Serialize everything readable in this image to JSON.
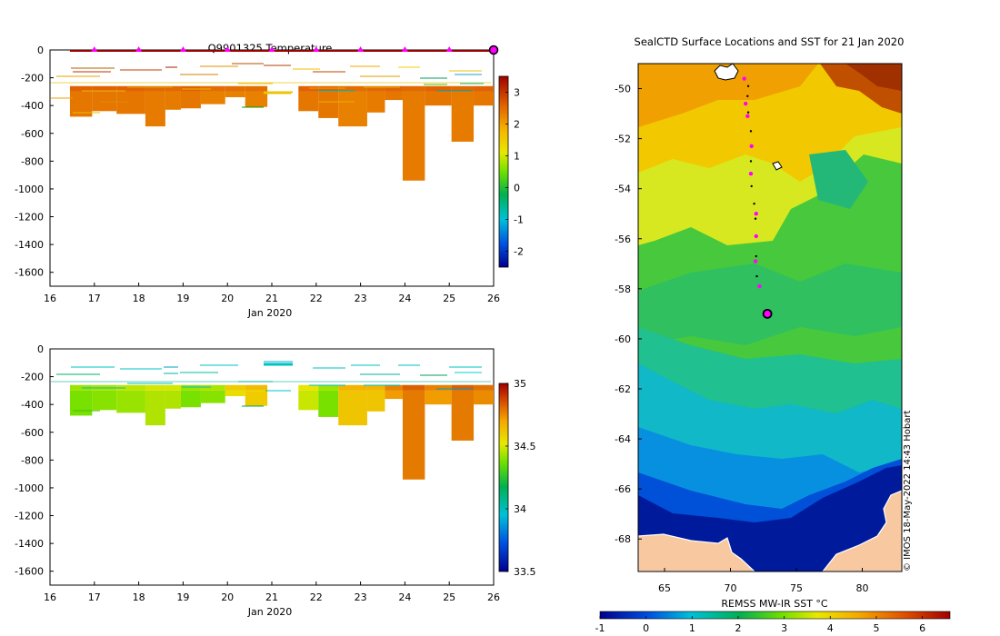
{
  "left_title": "Q9901325  Temperature",
  "right_title": "SealCTD Surface Locations and SST for 21 Jan 2020",
  "credit": "© IMOS 18-May-2022 14:43 Hobart",
  "colors": {
    "land": "#f8c9a0",
    "track_magenta": "#ff00ff",
    "track_black": "#000000"
  },
  "chart_data": [
    {
      "type": "heatmap",
      "title": "Q9901325  Temperature",
      "xlabel": "Jan 2020",
      "ylabel": "",
      "x_ticks": [
        "16",
        "17",
        "18",
        "19",
        "20",
        "21",
        "22",
        "23",
        "24",
        "25",
        "26"
      ],
      "xlim": [
        16,
        26
      ],
      "y_ticks": [
        "0",
        "-200",
        "-400",
        "-600",
        "-800",
        "-1000",
        "-1200",
        "-1400",
        "-1600"
      ],
      "ylim": [
        -1700,
        0
      ],
      "colorbar": {
        "ticks": [
          "3",
          "2",
          "1",
          "0",
          "-1",
          "-2"
        ],
        "range": [
          -2.5,
          3.5
        ]
      },
      "surface_markers": [
        17,
        18,
        19,
        20,
        21,
        22,
        23,
        24,
        25
      ],
      "current_marker": 26,
      "profiles": [
        {
          "start": 16.45,
          "end": 16.95,
          "depth": -480,
          "value": 2.4
        },
        {
          "start": 16.95,
          "end": 17.5,
          "depth": -440,
          "value": 2.4
        },
        {
          "start": 17.5,
          "end": 18.15,
          "depth": -460,
          "value": 2.4
        },
        {
          "start": 18.15,
          "end": 18.6,
          "depth": -550,
          "value": 2.35
        },
        {
          "start": 18.6,
          "end": 18.95,
          "depth": -430,
          "value": 2.35
        },
        {
          "start": 18.95,
          "end": 19.4,
          "depth": -420,
          "value": 2.4
        },
        {
          "start": 19.4,
          "end": 19.95,
          "depth": -390,
          "value": 2.3
        },
        {
          "start": 19.95,
          "end": 20.4,
          "depth": -340,
          "value": 2.3
        },
        {
          "start": 20.4,
          "end": 20.9,
          "depth": -410,
          "value": 2.3
        },
        {
          "start": 21.6,
          "end": 22.05,
          "depth": -440,
          "value": 2.4
        },
        {
          "start": 22.05,
          "end": 22.5,
          "depth": -490,
          "value": 2.4
        },
        {
          "start": 22.5,
          "end": 23.15,
          "depth": -550,
          "value": 2.3
        },
        {
          "start": 23.15,
          "end": 23.55,
          "depth": -450,
          "value": 2.35
        },
        {
          "start": 23.55,
          "end": 23.95,
          "depth": -360,
          "value": 2.4
        },
        {
          "start": 23.95,
          "end": 24.45,
          "depth": -940,
          "value": 2.35
        },
        {
          "start": 24.45,
          "end": 25.05,
          "depth": -400,
          "value": 2.4
        },
        {
          "start": 25.05,
          "end": 25.55,
          "depth": -660,
          "value": 2.35
        },
        {
          "start": 25.55,
          "end": 26.0,
          "depth": -400,
          "value": 2.4
        }
      ]
    },
    {
      "type": "heatmap",
      "title": "",
      "xlabel": "Jan 2020",
      "ylabel": "",
      "x_ticks": [
        "16",
        "17",
        "18",
        "19",
        "20",
        "21",
        "22",
        "23",
        "24",
        "25",
        "26"
      ],
      "xlim": [
        16,
        26
      ],
      "y_ticks": [
        "0",
        "-200",
        "-400",
        "-600",
        "-800",
        "-1000",
        "-1200",
        "-1400",
        "-1600"
      ],
      "ylim": [
        -1700,
        0
      ],
      "colorbar": {
        "ticks": [
          "35",
          "34.5",
          "34",
          "33.5"
        ],
        "range": [
          33.5,
          35
        ]
      },
      "profiles": [
        {
          "start": 16.45,
          "end": 16.95,
          "depth": -480,
          "value": 34.38
        },
        {
          "start": 16.95,
          "end": 17.5,
          "depth": -440,
          "value": 34.4
        },
        {
          "start": 17.5,
          "end": 18.15,
          "depth": -460,
          "value": 34.42
        },
        {
          "start": 18.15,
          "end": 18.6,
          "depth": -550,
          "value": 34.45
        },
        {
          "start": 18.6,
          "end": 18.95,
          "depth": -430,
          "value": 34.45
        },
        {
          "start": 18.95,
          "end": 19.4,
          "depth": -420,
          "value": 34.38
        },
        {
          "start": 19.4,
          "end": 19.95,
          "depth": -390,
          "value": 34.4
        },
        {
          "start": 19.95,
          "end": 20.4,
          "depth": -340,
          "value": 34.55
        },
        {
          "start": 20.4,
          "end": 20.9,
          "depth": -410,
          "value": 34.6
        },
        {
          "start": 21.6,
          "end": 22.05,
          "depth": -440,
          "value": 34.48
        },
        {
          "start": 22.05,
          "end": 22.5,
          "depth": -490,
          "value": 34.38
        },
        {
          "start": 22.5,
          "end": 23.15,
          "depth": -550,
          "value": 34.62
        },
        {
          "start": 23.15,
          "end": 23.55,
          "depth": -450,
          "value": 34.62
        },
        {
          "start": 23.55,
          "end": 23.95,
          "depth": -360,
          "value": 34.72
        },
        {
          "start": 23.95,
          "end": 24.45,
          "depth": -940,
          "value": 34.78
        },
        {
          "start": 24.45,
          "end": 25.05,
          "depth": -400,
          "value": 34.72
        },
        {
          "start": 25.05,
          "end": 25.55,
          "depth": -660,
          "value": 34.78
        },
        {
          "start": 25.55,
          "end": 26.0,
          "depth": -400,
          "value": 34.75
        }
      ]
    },
    {
      "type": "heatmap",
      "title": "SealCTD Surface Locations and SST for 21 Jan 2020",
      "xlabel": "",
      "ylabel": "",
      "x_ticks": [
        "65",
        "70",
        "75",
        "80"
      ],
      "xlim": [
        63,
        83
      ],
      "y_ticks": [
        "-50",
        "-52",
        "-54",
        "-56",
        "-58",
        "-60",
        "-62",
        "-64",
        "-66",
        "-68"
      ],
      "ylim": [
        -69.3,
        -49
      ],
      "colorbar": {
        "label": "REMSS MW-IR SST °C",
        "ticks": [
          "-1",
          "0",
          "1",
          "2",
          "3",
          "4",
          "5",
          "6"
        ],
        "range": [
          -1,
          6.6
        ]
      },
      "track_magenta": [
        [
          71.05,
          -49.6
        ],
        [
          71.15,
          -50.6
        ],
        [
          71.3,
          -51.1
        ],
        [
          71.6,
          -52.3
        ],
        [
          71.55,
          -53.4
        ],
        [
          71.95,
          -55.0
        ],
        [
          71.95,
          -55.9
        ],
        [
          71.9,
          -56.9
        ],
        [
          72.2,
          -57.9
        ]
      ],
      "track_black": [
        [
          71.35,
          -49.9
        ],
        [
          71.3,
          -50.3
        ],
        [
          71.35,
          -50.95
        ],
        [
          71.55,
          -51.7
        ],
        [
          71.55,
          -52.9
        ],
        [
          71.6,
          -53.9
        ],
        [
          71.8,
          -54.6
        ],
        [
          71.9,
          -55.2
        ],
        [
          71.95,
          -56.7
        ],
        [
          72.0,
          -57.5
        ]
      ],
      "current_position": [
        72.8,
        -59.0
      ]
    }
  ]
}
